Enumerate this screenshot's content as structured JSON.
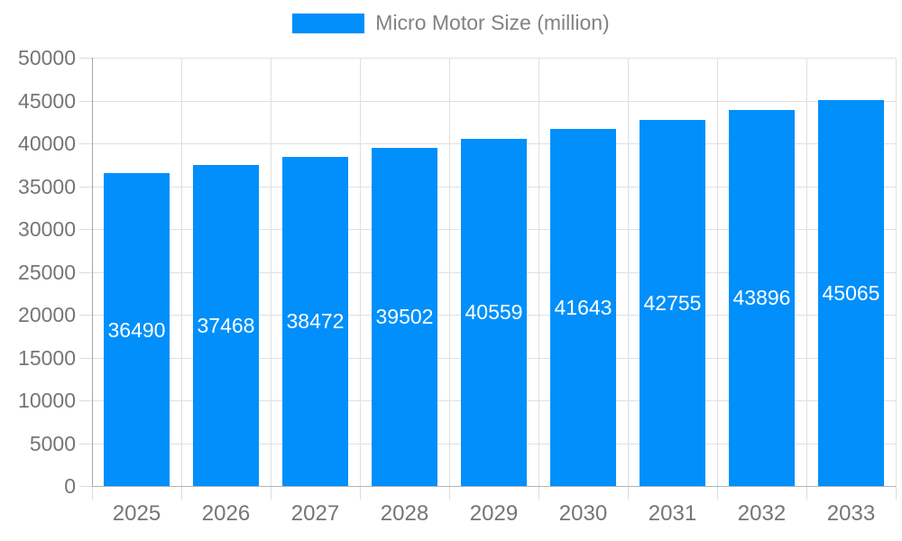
{
  "legend": {
    "label": "Micro Motor Size (million)"
  },
  "chart_data": {
    "type": "bar",
    "title": "",
    "legend_position": "top",
    "categories": [
      "2025",
      "2026",
      "2027",
      "2028",
      "2029",
      "2030",
      "2031",
      "2032",
      "2033"
    ],
    "series": [
      {
        "name": "Micro Motor Size (million)",
        "values": [
          36490,
          37468,
          38472,
          39502,
          40559,
          41643,
          42755,
          43896,
          45065
        ]
      }
    ],
    "value_labels": "inside-center-white",
    "xlabel": "",
    "ylabel": "",
    "ylim": [
      0,
      50000
    ],
    "ytick_step": 5000,
    "yticks": [
      0,
      5000,
      10000,
      15000,
      20000,
      25000,
      30000,
      35000,
      40000,
      45000,
      50000
    ],
    "grid": "horizontal-and-vertical"
  },
  "colors": {
    "bar": "#008FFB",
    "legend_swatch": "#008FFB",
    "legend_text": "#828282",
    "axis_label": "#757575",
    "grid_line": "#e0e0e0",
    "tick_line": "#dcdcdc",
    "y_axis_line": "#a6a6a6",
    "x_axis_line": "#b3b3b3",
    "value_label": "#ffffff",
    "background": "#ffffff"
  }
}
